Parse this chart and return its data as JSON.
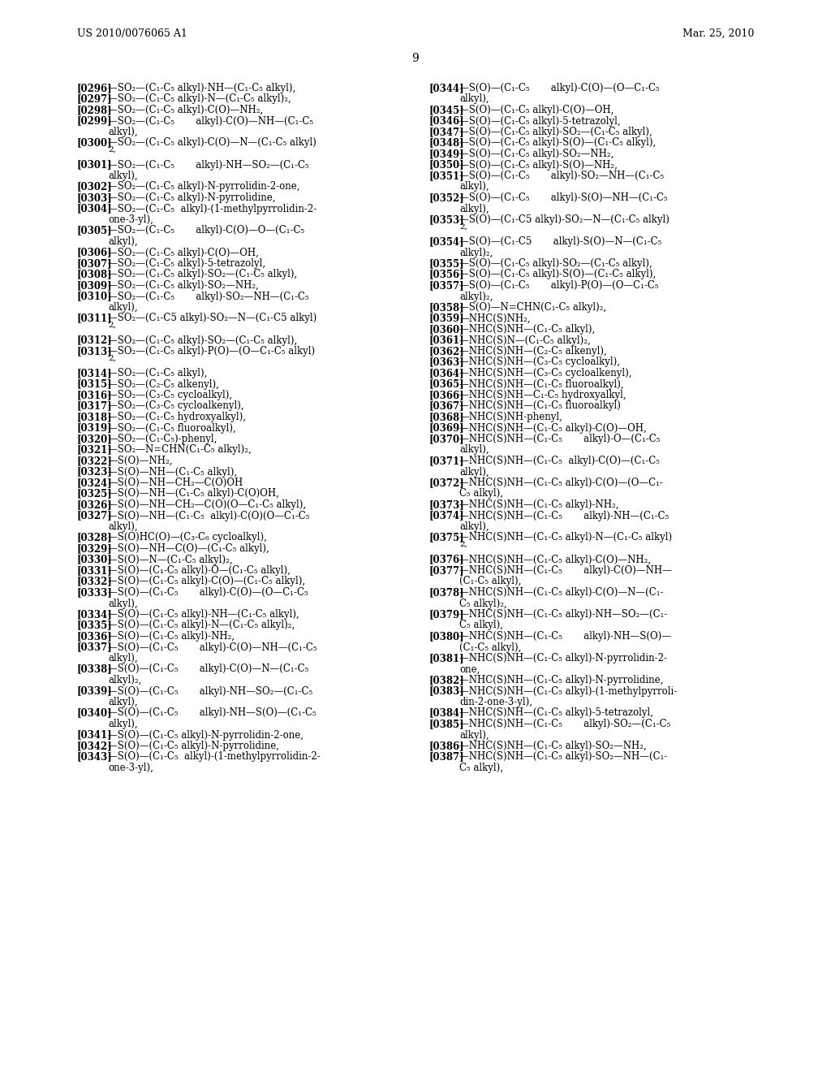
{
  "header_left": "US 2010/0076065 A1",
  "header_right": "Mar. 25, 2010",
  "page_number": "9",
  "bg": "#ffffff",
  "left_lines": [
    {
      "bold": "[0296]",
      "normal": "  —SO₂—(C₁-C₅ alkyl)-NH—(C₁-C₅ alkyl),"
    },
    {
      "bold": "[0297]",
      "normal": "  —SO₂—(C₁-C₅ alkyl)-N—(C₁-C₅ alkyl)₂,"
    },
    {
      "bold": "[0298]",
      "normal": "  —SO₂—(C₁-C₅ alkyl)-C(O)—NH₂,"
    },
    {
      "bold": "[0299]",
      "normal": "  —SO₂—(C₁-C₅       alkyl)-C(O)—NH—(C₁-C₅"
    },
    {
      "bold": "",
      "normal": "    alkyl),",
      "indent": true
    },
    {
      "bold": "[0300]",
      "normal": "  —SO₂—(C₁-C₅ alkyl)-C(O)—N—(C₁-C₅ alkyl)"
    },
    {
      "bold": "",
      "normal": "    2,",
      "indent": true,
      "superscript": true
    },
    {
      "bold": "[0301]",
      "normal": "  —SO₂—(C₁-C₅       alkyl)-NH—SO₂—(C₁-C₅"
    },
    {
      "bold": "",
      "normal": "    alkyl),",
      "indent": true
    },
    {
      "bold": "[0302]",
      "normal": "  —SO₂—(C₁-C₅ alkyl)-N-pyrrolidin-2-one,"
    },
    {
      "bold": "[0303]",
      "normal": "  —SO₂—(C₁-C₅ alkyl)-N-pyrrolidine,"
    },
    {
      "bold": "[0304]",
      "normal": "  —SO₂—(C₁-C₅  alkyl)-(1-methylpyrrolidin-2-"
    },
    {
      "bold": "",
      "normal": "    one-3-yl),",
      "indent": true
    },
    {
      "bold": "[0305]",
      "normal": "  —SO₂—(C₁-C₅       alkyl)-C(O)—O—(C₁-C₅"
    },
    {
      "bold": "",
      "normal": "    alkyl),",
      "indent": true
    },
    {
      "bold": "[0306]",
      "normal": "  —SO₂—(C₁-C₅ alkyl)-C(O)—OH,"
    },
    {
      "bold": "[0307]",
      "normal": "  —SO₂—(C₁-C₅ alkyl)-5-tetrazolyl,"
    },
    {
      "bold": "[0308]",
      "normal": "  —SO₂—(C₁-C₅ alkyl)-SO₂—(C₁-C₅ alkyl),"
    },
    {
      "bold": "[0309]",
      "normal": "  —SO₂—(C₁-C₅ alkyl)-SO₂—NH₂,"
    },
    {
      "bold": "[0310]",
      "normal": "  —SO₂—(C₁-C₅       alkyl)-SO₂—NH—(C₁-C₅"
    },
    {
      "bold": "",
      "normal": "    alkyl),",
      "indent": true
    },
    {
      "bold": "[0311]",
      "normal": "  —SO₂—(C₁-C5 alkyl)-SO₂—N—(C₁-C5 alkyl)"
    },
    {
      "bold": "",
      "normal": "    2,",
      "indent": true,
      "superscript": true
    },
    {
      "bold": "[0312]",
      "normal": "  —SO₂—(C₁-C₅ alkyl)-SO₂—(C₁-C₅ alkyl),"
    },
    {
      "bold": "[0313]",
      "normal": "  —SO₂—(C₁-C₅ alkyl)-P(O)—(O—C₁-C₅ alkyl)"
    },
    {
      "bold": "",
      "normal": "    2,",
      "indent": true,
      "superscript": true
    },
    {
      "bold": "[0314]",
      "normal": "  —SO₂—(C₁-C₅ alkyl),"
    },
    {
      "bold": "[0315]",
      "normal": "  —SO₂—(C₂-C₅ alkenyl),"
    },
    {
      "bold": "[0316]",
      "normal": "  —SO₂—(C₃-C₅ cycloalkyl),"
    },
    {
      "bold": "[0317]",
      "normal": "  —SO₂—(C₃-C₅ cycloalkenyl),"
    },
    {
      "bold": "[0318]",
      "normal": "  —SO₂—(C₁-C₅ hydroxyalkyl),"
    },
    {
      "bold": "[0319]",
      "normal": "  —SO₂—(C₁-C₅ fluoroalkyl),"
    },
    {
      "bold": "[0320]",
      "normal": "  —SO₂—(C₁-C₅)-phenyl,"
    },
    {
      "bold": "[0321]",
      "normal": "  —SO₂—N=CHN(C₁-C₅ alkyl)₂,"
    },
    {
      "bold": "[0322]",
      "normal": "  —S(O)—NH₂,"
    },
    {
      "bold": "[0323]",
      "normal": "  —S(O)—NH—(C₁-C₅ alkyl),"
    },
    {
      "bold": "[0324]",
      "normal": "  —S(O)—NH—CH₂—C(O)OH"
    },
    {
      "bold": "[0325]",
      "normal": "  —S(O)—NH—(C₁-C₅ alkyl)-C(O)OH,"
    },
    {
      "bold": "[0326]",
      "normal": "  —S(O)—NH—CH₂—C(O)(O—C₁-C₅ alkyl),"
    },
    {
      "bold": "[0327]",
      "normal": "  —S(O)—NH—(C₁-C₅  alkyl)-C(O)(O—C₁-C₅"
    },
    {
      "bold": "",
      "normal": "    alkyl),",
      "indent": true
    },
    {
      "bold": "[0328]",
      "normal": "  —S(O)HC(O)—(C₃-C₆ cycloalkyl),"
    },
    {
      "bold": "[0329]",
      "normal": "  —S(O)—NH—C(O)—(C₁-C₅ alkyl),"
    },
    {
      "bold": "[0330]",
      "normal": "  —S(O)—N—(C₁-C₅ alkyl)₂,"
    },
    {
      "bold": "[0331]",
      "normal": "  —S(O)—(C₁-C₅ alkyl)-O—(C₁-C₅ alkyl),"
    },
    {
      "bold": "[0332]",
      "normal": "  —S(O)—(C₁-C₅ alkyl)-C(O)—(C₁-C₅ alkyl),"
    },
    {
      "bold": "[0333]",
      "normal": "  —S(O)—(C₁-C₅       alkyl)-C(O)—(O—C₁-C₅"
    },
    {
      "bold": "",
      "normal": "    alkyl),",
      "indent": true
    },
    {
      "bold": "[0334]",
      "normal": "  —S(O)—(C₁-C₅ alkyl)-NH—(C₁-C₅ alkyl),"
    },
    {
      "bold": "[0335]",
      "normal": "  —S(O)—(C₁-C₅ alkyl)-N—(C₁-C₅ alkyl)₂,"
    },
    {
      "bold": "[0336]",
      "normal": "  —S(O)—(C₁-C₅ alkyl)-NH₂,"
    },
    {
      "bold": "[0337]",
      "normal": "  —S(O)—(C₁-C₅       alkyl)-C(O)—NH—(C₁-C₅"
    },
    {
      "bold": "",
      "normal": "    alkyl),",
      "indent": true
    },
    {
      "bold": "[0338]",
      "normal": "  —S(O)—(C₁-C₅       alkyl)-C(O)—N—(C₁-C₅"
    },
    {
      "bold": "",
      "normal": "    alkyl)₂,",
      "indent": true
    },
    {
      "bold": "[0339]",
      "normal": "  —S(O)—(C₁-C₅       alkyl)-NH—SO₂—(C₁-C₅"
    },
    {
      "bold": "",
      "normal": "    alkyl),",
      "indent": true
    },
    {
      "bold": "[0340]",
      "normal": "  —S(O)—(C₁-C₅       alkyl)-NH—S(O)—(C₁-C₅"
    },
    {
      "bold": "",
      "normal": "    alkyl),",
      "indent": true
    },
    {
      "bold": "[0341]",
      "normal": "  —S(O)—(C₁-C₅ alkyl)-N-pyrrolidin-2-one,"
    },
    {
      "bold": "[0342]",
      "normal": "  —S(O)—(C₁-C₅ alkyl)-N-pyrrolidine,"
    },
    {
      "bold": "[0343]",
      "normal": "  —S(O)—(C₁-C₅  alkyl)-(1-methylpyrrolidin-2-"
    },
    {
      "bold": "",
      "normal": "    one-3-yl),",
      "indent": true
    }
  ],
  "right_lines": [
    {
      "bold": "[0344]",
      "normal": "  —S(O)—(C₁-C₅       alkyl)-C(O)—(O—C₁-C₅"
    },
    {
      "bold": "",
      "normal": "    alkyl),",
      "indent": true
    },
    {
      "bold": "[0345]",
      "normal": "  —S(O)—(C₁-C₅ alkyl)-C(O)—OH,"
    },
    {
      "bold": "[0346]",
      "normal": "  —S(O)—(C₁-C₅ alkyl)-5-tetrazolyl,"
    },
    {
      "bold": "[0347]",
      "normal": "  —S(O)—(C₁-C₅ alkyl)-SO₂—(C₁-C₅ alkyl),"
    },
    {
      "bold": "[0348]",
      "normal": "  —S(O)—(C₁-C₅ alkyl)-S(O)—(C₁-C₅ alkyl),"
    },
    {
      "bold": "[0349]",
      "normal": "  —S(O)—(C₁-C₅ alkyl)-SO₂—NH₂,"
    },
    {
      "bold": "[0350]",
      "normal": "  —S(O)—(C₁-C₅ alkyl)-S(O)—NH₂,"
    },
    {
      "bold": "[0351]",
      "normal": "  —S(O)—(C₁-C₅       alkyl)-SO₂—NH—(C₁-C₅"
    },
    {
      "bold": "",
      "normal": "    alkyl),",
      "indent": true
    },
    {
      "bold": "[0352]",
      "normal": "  —S(O)—(C₁-C₅       alkyl)-S(O)—NH—(C₁-C₅"
    },
    {
      "bold": "",
      "normal": "    alkyl),",
      "indent": true
    },
    {
      "bold": "[0353]",
      "normal": "  —S(O)—(C₁-C5 alkyl)-SO₂—N—(C₁-C₅ alkyl)"
    },
    {
      "bold": "",
      "normal": "    2,",
      "indent": true,
      "superscript": true
    },
    {
      "bold": "[0354]",
      "normal": "  —S(O)—(C₁-C5       alkyl)-S(O)—N—(C₁-C₅"
    },
    {
      "bold": "",
      "normal": "    alkyl)₂,",
      "indent": true
    },
    {
      "bold": "[0355]",
      "normal": "  —S(O)—(C₁-C₅ alkyl)-SO₂—(C₁-C₅ alkyl),"
    },
    {
      "bold": "[0356]",
      "normal": "  —S(O)—(C₁-C₅ alkyl)-S(O)—(C₁-C₅ alkyl),"
    },
    {
      "bold": "[0357]",
      "normal": "  —S(O)—(C₁-C₅       alkyl)-P(O)—(O—C₁-C₅"
    },
    {
      "bold": "",
      "normal": "    alkyl)₂,",
      "indent": true
    },
    {
      "bold": "[0358]",
      "normal": "  —S(O)—N=CHN(C₁-C₅ alkyl)₂,"
    },
    {
      "bold": "[0359]",
      "normal": "  —NHC(S)NH₂,"
    },
    {
      "bold": "[0360]",
      "normal": "  —NHC(S)NH—(C₁-C₅ alkyl),"
    },
    {
      "bold": "[0361]",
      "normal": "  —NHC(S)N—(C₁-C₅ alkyl)₂,"
    },
    {
      "bold": "[0362]",
      "normal": "  —NHC(S)NH—(C₂-C₅ alkenyl),"
    },
    {
      "bold": "[0363]",
      "normal": "  —NHC(S)NH—(C₃-C₅ cycloalkyl),"
    },
    {
      "bold": "[0364]",
      "normal": "  —NHC(S)NH—(C₃-C₅ cycloalkenyl),"
    },
    {
      "bold": "[0365]",
      "normal": "  —NHC(S)NH—(C₁-C₅ fluoroalkyl),"
    },
    {
      "bold": "[0366]",
      "normal": "  —NHC(S)NH—C₁-C₅ hydroxyalkyl,"
    },
    {
      "bold": "[0367]",
      "normal": "  —NHC(S)NH—(C₁-C₅ fluoroalkyl)"
    },
    {
      "bold": "[0368]",
      "normal": "  —NHC(S)NH-phenyl,"
    },
    {
      "bold": "[0369]",
      "normal": "  —NHC(S)NH—(C₁-C₅ alkyl)-C(O)—OH,"
    },
    {
      "bold": "[0370]",
      "normal": "  —NHC(S)NH—(C₁-C₅       alkyl)-O—(C₁-C₅"
    },
    {
      "bold": "",
      "normal": "    alkyl),",
      "indent": true
    },
    {
      "bold": "[0371]",
      "normal": "  —NHC(S)NH—(C₁-C₅  alkyl)-C(O)—(C₁-C₅"
    },
    {
      "bold": "",
      "normal": "    alkyl),",
      "indent": true
    },
    {
      "bold": "[0372]",
      "normal": "  —NHC(S)NH—(C₁-C₅ alkyl)-C(O)—(O—C₁-"
    },
    {
      "bold": "",
      "normal": "    C₅ alkyl),",
      "indent": true
    },
    {
      "bold": "[0373]",
      "normal": "  —NHC(S)NH—(C₁-C₅ alkyl)-NH₂,"
    },
    {
      "bold": "[0374]",
      "normal": "  —NHC(S)NH—(C₁-C₅       alkyl)-NH—(C₁-C₅"
    },
    {
      "bold": "",
      "normal": "    alkyl),",
      "indent": true
    },
    {
      "bold": "[0375]",
      "normal": "  —NHC(S)NH—(C₁-C₅ alkyl)-N—(C₁-C₅ alkyl)"
    },
    {
      "bold": "",
      "normal": "    2,",
      "indent": true,
      "superscript": true
    },
    {
      "bold": "[0376]",
      "normal": "  —NHC(S)NH—(C₁-C₅ alkyl)-C(O)—NH₂,"
    },
    {
      "bold": "[0377]",
      "normal": "  —NHC(S)NH—(C₁-C₅       alkyl)-C(O)—NH—"
    },
    {
      "bold": "",
      "normal": "    (C₁-C₅ alkyl),",
      "indent": true
    },
    {
      "bold": "[0378]",
      "normal": "  —NHC(S)NH—(C₁-C₅ alkyl)-C(O)—N—(C₁-"
    },
    {
      "bold": "",
      "normal": "    C₅ alkyl)₂,",
      "indent": true
    },
    {
      "bold": "[0379]",
      "normal": "  —NHC(S)NH—(C₁-C₅ alkyl)-NH—SO₂—(C₁-"
    },
    {
      "bold": "",
      "normal": "    C₅ alkyl),",
      "indent": true
    },
    {
      "bold": "[0380]",
      "normal": "  —NHC(S)NH—(C₁-C₅       alkyl)-NH—S(O)—"
    },
    {
      "bold": "",
      "normal": "    (C₁-C₅ alkyl),",
      "indent": true
    },
    {
      "bold": "[0381]",
      "normal": "  —NHC(S)NH—(C₁-C₅ alkyl)-N-pyrrolidin-2-"
    },
    {
      "bold": "",
      "normal": "    one,",
      "indent": true
    },
    {
      "bold": "[0382]",
      "normal": "  —NHC(S)NH—(C₁-C₅ alkyl)-N-pyrrolidine,"
    },
    {
      "bold": "[0383]",
      "normal": "  —NHC(S)NH—(C₁-C₅ alkyl)-(1-methylpyrroli-"
    },
    {
      "bold": "",
      "normal": "    din-2-one-3-yl),",
      "indent": true
    },
    {
      "bold": "[0384]",
      "normal": "  —NHC(S)NH—(C₁-C₅ alkyl)-5-tetrazolyl,"
    },
    {
      "bold": "[0385]",
      "normal": "  —NHC(S)NH—(C₁-C₅       alkyl)-SO₂—(C₁-C₅"
    },
    {
      "bold": "",
      "normal": "    alkyl),",
      "indent": true
    },
    {
      "bold": "[0386]",
      "normal": "  —NHC(S)NH—(C₁-C₅ alkyl)-SO₂—NH₂,"
    },
    {
      "bold": "[0387]",
      "normal": "  —NHC(S)NH—(C₁-C₅ alkyl)-SO₂—NH—(C₁-"
    },
    {
      "bold": "",
      "normal": "    C₅ alkyl),",
      "indent": true
    }
  ]
}
